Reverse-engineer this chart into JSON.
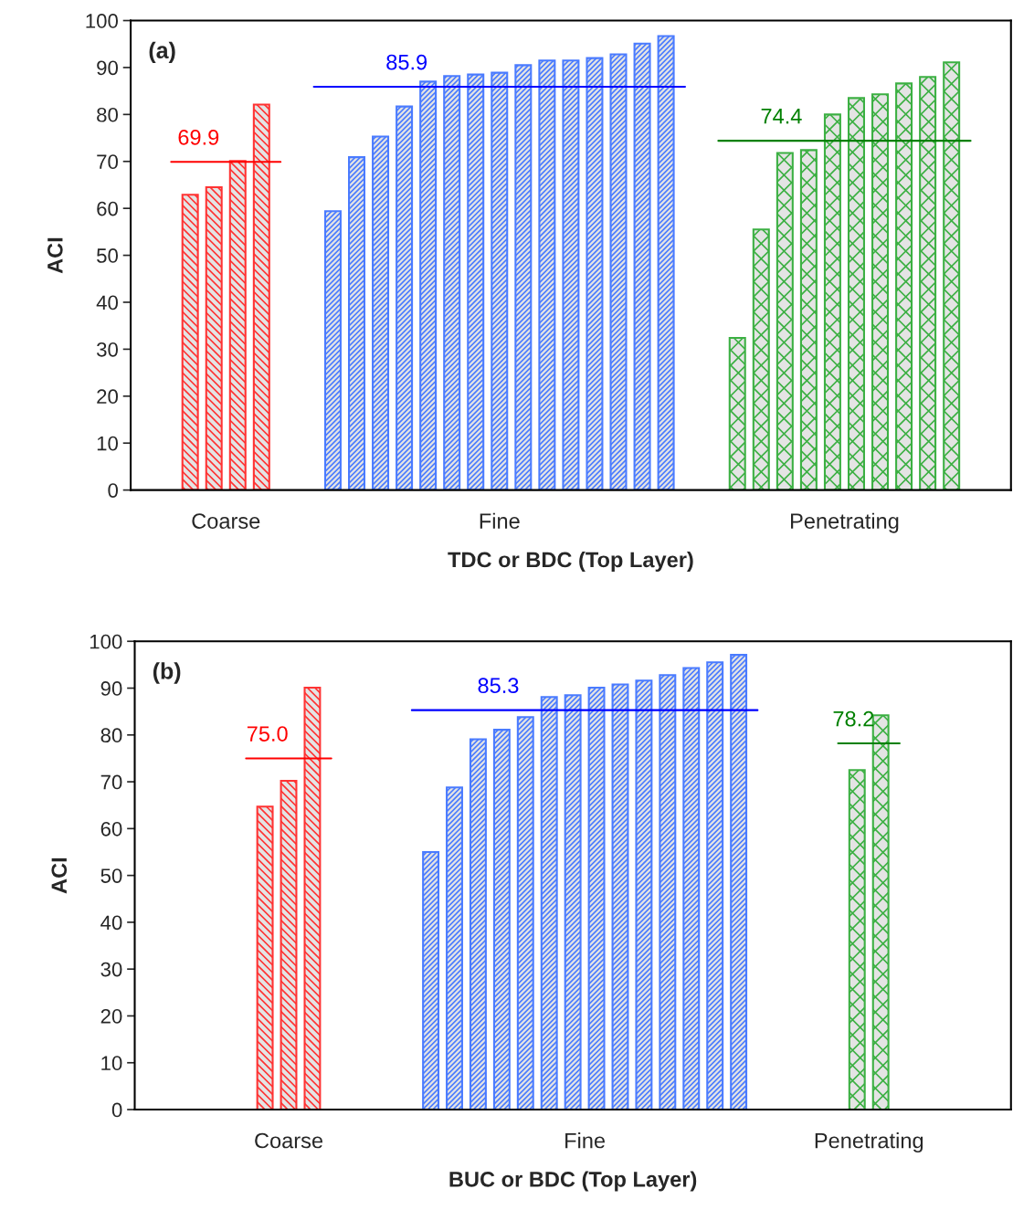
{
  "chart_data": [
    {
      "type": "bar",
      "title": "(a)",
      "xlabel": "TDC or BDC (Top Layer)",
      "ylabel": "ACI",
      "categories": [
        null,
        null,
        null,
        null,
        null,
        null,
        null,
        null,
        null,
        null,
        null,
        null,
        null,
        null,
        null,
        null,
        null,
        null,
        null,
        null,
        null,
        null,
        null,
        null,
        null,
        null,
        null,
        null,
        null,
        null,
        null,
        null,
        null,
        null,
        null,
        null,
        null
      ],
      "series": [
        {
          "name": "Coarse",
          "color": "#ff3333",
          "values": [
            null,
            null,
            62.9,
            64.5,
            70.1,
            82.1,
            null,
            null,
            null,
            null,
            null,
            null,
            null,
            null,
            null,
            null,
            null,
            null,
            null,
            null,
            null,
            null,
            null,
            null,
            null,
            null,
            null,
            null,
            null,
            null,
            null,
            null,
            null,
            null,
            null,
            null,
            null
          ]
        },
        {
          "name": "Fine",
          "color": "#4a7bff",
          "values": [
            null,
            null,
            null,
            null,
            null,
            null,
            null,
            null,
            59.4,
            70.9,
            75.3,
            81.7,
            87.0,
            88.2,
            88.5,
            88.9,
            90.5,
            91.5,
            91.5,
            92.0,
            92.8,
            95.1,
            96.7,
            null,
            null,
            null,
            null,
            null,
            null,
            null,
            null,
            null,
            null,
            null,
            null,
            null,
            null
          ]
        },
        {
          "name": "Penetrating",
          "color": "#3cb043",
          "values": [
            null,
            null,
            null,
            null,
            null,
            null,
            null,
            null,
            null,
            null,
            null,
            null,
            null,
            null,
            null,
            null,
            null,
            null,
            null,
            null,
            null,
            null,
            null,
            null,
            null,
            32.4,
            55.5,
            71.8,
            72.4,
            80.0,
            83.5,
            84.3,
            86.6,
            88.0,
            91.1,
            null,
            null
          ]
        }
      ],
      "ylim": [
        0,
        100
      ],
      "yticks": [
        0,
        10,
        20,
        30,
        40,
        50,
        60,
        70,
        80,
        90,
        100
      ],
      "ref_lines": [
        {
          "axis": "y",
          "value": 69.9,
          "label": "69.9",
          "color": "#ff0000"
        },
        {
          "axis": "y",
          "value": 85.9,
          "label": "85.9",
          "color": "#0000ff"
        },
        {
          "axis": "y",
          "value": 74.4,
          "label": "74.4",
          "color": "#008000"
        }
      ]
    },
    {
      "type": "bar",
      "title": "(b)",
      "xlabel": "BUC or BDC (Top Layer)",
      "ylabel": "ACI",
      "categories": [
        null,
        null,
        null,
        null,
        null,
        null,
        null,
        null,
        null,
        null,
        null,
        null,
        null,
        null,
        null,
        null,
        null,
        null,
        null,
        null,
        null,
        null,
        null,
        null,
        null,
        null,
        null,
        null,
        null,
        null,
        null,
        null,
        null,
        null,
        null,
        null,
        null
      ],
      "series": [
        {
          "name": "Coarse",
          "color": "#ff3333",
          "values": [
            null,
            null,
            null,
            null,
            null,
            64.7,
            70.2,
            90.1,
            null,
            null,
            null,
            null,
            null,
            null,
            null,
            null,
            null,
            null,
            null,
            null,
            null,
            null,
            null,
            null,
            null,
            null,
            null,
            null,
            null,
            null,
            null,
            null,
            null,
            null,
            null,
            null,
            null
          ]
        },
        {
          "name": "Fine",
          "color": "#4a7bff",
          "values": [
            null,
            null,
            null,
            null,
            null,
            null,
            null,
            null,
            null,
            null,
            null,
            null,
            55.0,
            68.8,
            79.1,
            81.1,
            83.8,
            88.1,
            88.5,
            90.1,
            90.8,
            91.6,
            92.8,
            94.3,
            95.5,
            97.1,
            null,
            null,
            null,
            null,
            null,
            null,
            null,
            null,
            null,
            null,
            null
          ]
        },
        {
          "name": "Penetrating",
          "color": "#3cb043",
          "values": [
            null,
            null,
            null,
            null,
            null,
            null,
            null,
            null,
            null,
            null,
            null,
            null,
            null,
            null,
            null,
            null,
            null,
            null,
            null,
            null,
            null,
            null,
            null,
            null,
            null,
            null,
            null,
            null,
            null,
            null,
            72.5,
            84.2,
            null,
            null,
            null,
            null,
            null
          ]
        }
      ],
      "ylim": [
        0,
        100
      ],
      "yticks": [
        0,
        10,
        20,
        30,
        40,
        50,
        60,
        70,
        80,
        90,
        100
      ],
      "ref_lines": [
        {
          "axis": "y",
          "value": 75.0,
          "label": "75.0",
          "color": "#ff0000"
        },
        {
          "axis": "y",
          "value": 85.3,
          "label": "85.3",
          "color": "#0000ff"
        },
        {
          "axis": "y",
          "value": 78.2,
          "label": "78.2",
          "color": "#008000"
        }
      ]
    }
  ]
}
